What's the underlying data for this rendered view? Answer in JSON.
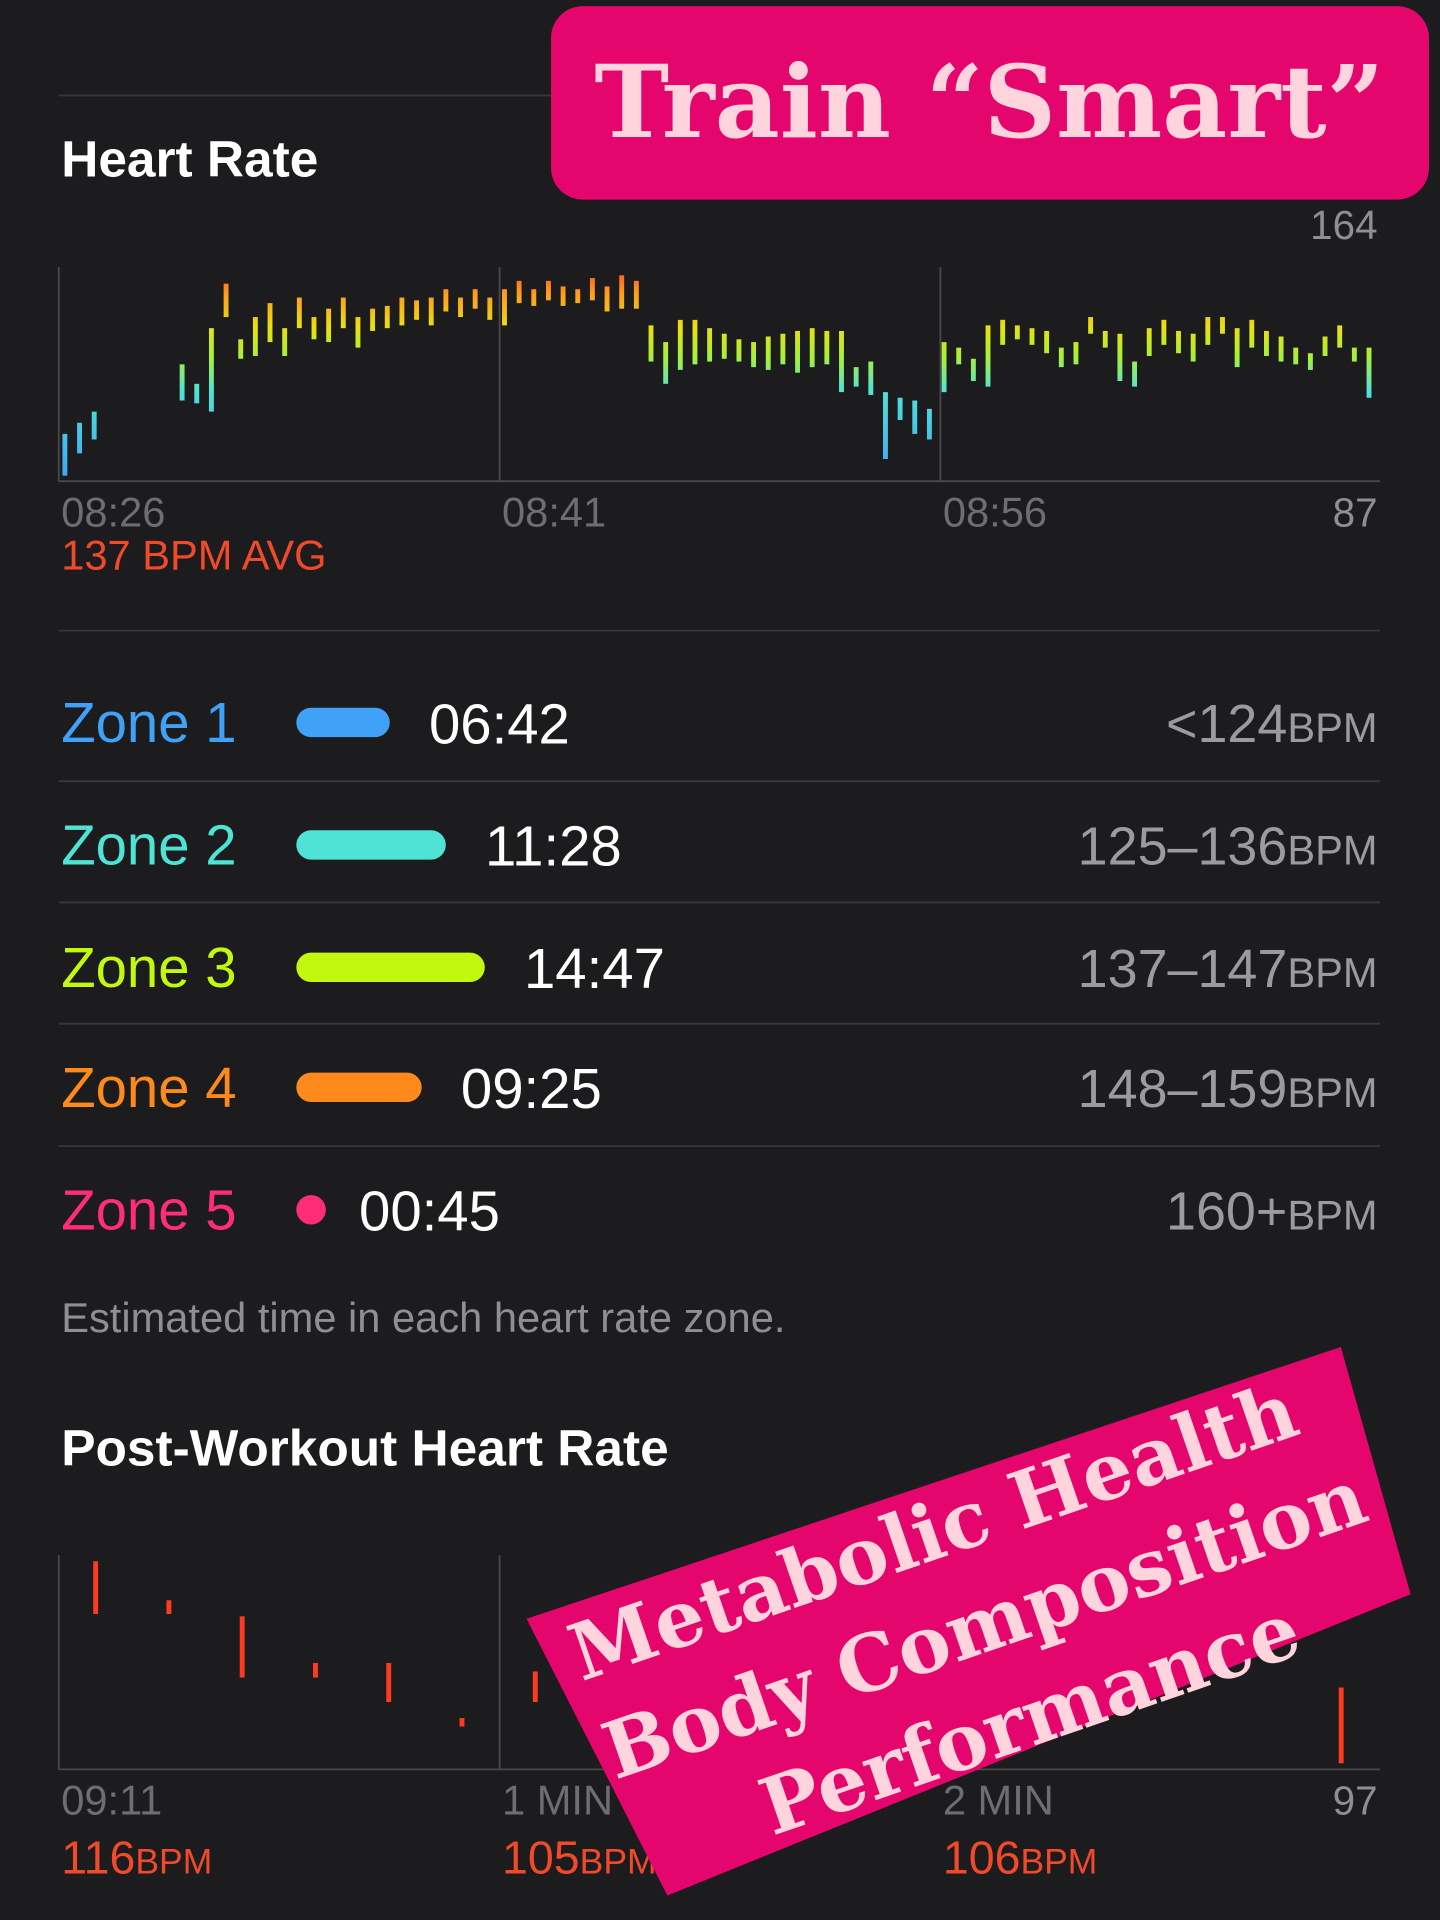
{
  "header": {
    "sticker": "Train “Smart”"
  },
  "heart_rate": {
    "title": "Heart Rate",
    "chart": {
      "type": "bar",
      "xticks": [
        "08:26",
        "08:41",
        "08:56"
      ],
      "ylim": [
        87,
        164
      ],
      "yticks": [
        87,
        164
      ],
      "lows": [
        89,
        97,
        102,
        null,
        null,
        null,
        null,
        null,
        116,
        115,
        112,
        146,
        131,
        132,
        137,
        132,
        142,
        138,
        137,
        142,
        135,
        141,
        142,
        143,
        145,
        143,
        148,
        146,
        149,
        145,
        143,
        151,
        150,
        152,
        150,
        151,
        152,
        148,
        149,
        149,
        130,
        122,
        127,
        129,
        130,
        131,
        130,
        128,
        127,
        129,
        126,
        128,
        129,
        119,
        121,
        118,
        95,
        109,
        104,
        102,
        119,
        129,
        123,
        121,
        136,
        138,
        136,
        133,
        128,
        129,
        140,
        135,
        123,
        121,
        132,
        136,
        133,
        130,
        136,
        140,
        128,
        135,
        132,
        130,
        129,
        127,
        132,
        135,
        130,
        117
      ],
      "highs": [
        104,
        108,
        112,
        null,
        null,
        null,
        null,
        null,
        129,
        122,
        142,
        158,
        138,
        146,
        151,
        142,
        153,
        146,
        149,
        153,
        146,
        149,
        150,
        153,
        152,
        153,
        156,
        153,
        156,
        153,
        156,
        159,
        156,
        159,
        157,
        156,
        160,
        157,
        161,
        159,
        143,
        137,
        145,
        145,
        142,
        140,
        138,
        137,
        139,
        140,
        141,
        142,
        141,
        141,
        128,
        130,
        119,
        117,
        116,
        113,
        137,
        135,
        131,
        143,
        145,
        143,
        142,
        141,
        135,
        137,
        146,
        141,
        140,
        130,
        142,
        145,
        141,
        140,
        146,
        146,
        142,
        145,
        141,
        139,
        135,
        133,
        139,
        143,
        135,
        135
      ]
    },
    "average": "137 BPM AVG"
  },
  "zones": {
    "rows": [
      {
        "name": "Zone 1",
        "duration": "06:42",
        "range": "<124",
        "unit": "BPM",
        "color": "#3fa2f7"
      },
      {
        "name": "Zone 2",
        "duration": "11:28",
        "range": "125–136",
        "unit": "BPM",
        "color": "#4fe3d6"
      },
      {
        "name": "Zone 3",
        "duration": "14:47",
        "range": "137–147",
        "unit": "BPM",
        "color": "#c2f80d"
      },
      {
        "name": "Zone 4",
        "duration": "09:25",
        "range": "148–159",
        "unit": "BPM",
        "color": "#ff8a1c"
      },
      {
        "name": "Zone 5",
        "duration": "00:45",
        "range": "160+",
        "unit": "BPM",
        "color": "#ff2d78"
      }
    ],
    "note": "Estimated time in each heart rate zone."
  },
  "post_workout": {
    "title": "Post-Workout Heart Rate",
    "chart": {
      "type": "bar",
      "ylim": [
        97,
        125
      ],
      "yticks": [
        97
      ],
      "lows": [
        117.3,
        117.3,
        109,
        109,
        105.8,
        102.6,
        105.8,
        null,
        null,
        null,
        null,
        null,
        null,
        null,
        null,
        null,
        null,
        97.8
      ],
      "highs": [
        124.2,
        119.1,
        117,
        110.9,
        110.9,
        103.7,
        109.8,
        null,
        null,
        null,
        null,
        null,
        null,
        null,
        null,
        null,
        null,
        107.7
      ]
    },
    "columns": [
      {
        "time": "09:11",
        "value": "116",
        "unit": "BPM"
      },
      {
        "time": "1 MIN",
        "value": "105",
        "unit": "BPM"
      },
      {
        "time": "2 MIN",
        "value": "106",
        "unit": "BPM"
      }
    ]
  },
  "sticker": {
    "lines": [
      "Metabolic Health",
      "Body Composition",
      "Performance"
    ]
  }
}
